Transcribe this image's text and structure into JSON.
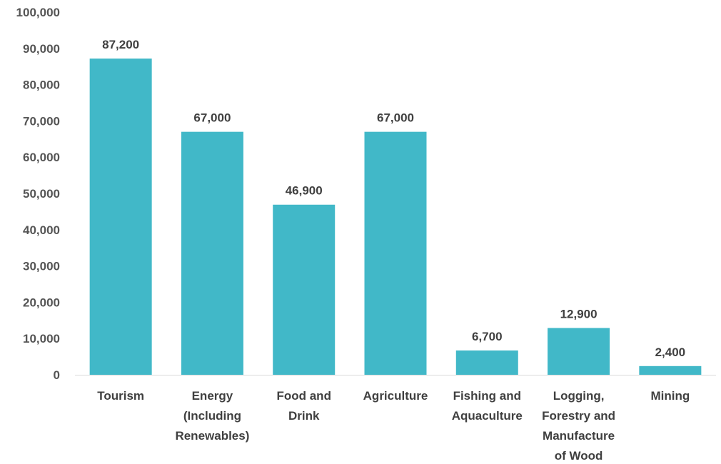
{
  "chart_data": {
    "type": "bar",
    "title": "",
    "xlabel": "",
    "ylabel": "",
    "categories": [
      "Tourism",
      "Energy (Including Renewables)",
      "Food and Drink",
      "Agriculture",
      "Fishing and Aquaculture",
      "Logging, Forestry and Manufacture of Wood",
      "Mining"
    ],
    "category_lines": [
      [
        "Tourism"
      ],
      [
        "Energy",
        "(Including",
        "Renewables)"
      ],
      [
        "Food and",
        "Drink"
      ],
      [
        "Agriculture"
      ],
      [
        "Fishing and",
        "Aquaculture"
      ],
      [
        "Logging,",
        "Forestry and",
        "Manufacture",
        "of Wood"
      ],
      [
        "Mining"
      ]
    ],
    "values": [
      87200,
      67000,
      46900,
      67000,
      6700,
      12900,
      2400
    ],
    "data_labels": [
      "87,200",
      "67,000",
      "46,900",
      "67,000",
      "6,700",
      "12,900",
      "2,400"
    ],
    "ylim": [
      0,
      100000
    ],
    "yticks": [
      0,
      10000,
      20000,
      30000,
      40000,
      50000,
      60000,
      70000,
      80000,
      90000,
      100000
    ],
    "ytick_labels": [
      "0",
      "10,000",
      "20,000",
      "30,000",
      "40,000",
      "50,000",
      "60,000",
      "70,000",
      "80,000",
      "90,000",
      "100,000"
    ],
    "grid": false,
    "legend": "none",
    "bar_color": "#41B8C8",
    "axis_color": "#D9D9D9"
  }
}
